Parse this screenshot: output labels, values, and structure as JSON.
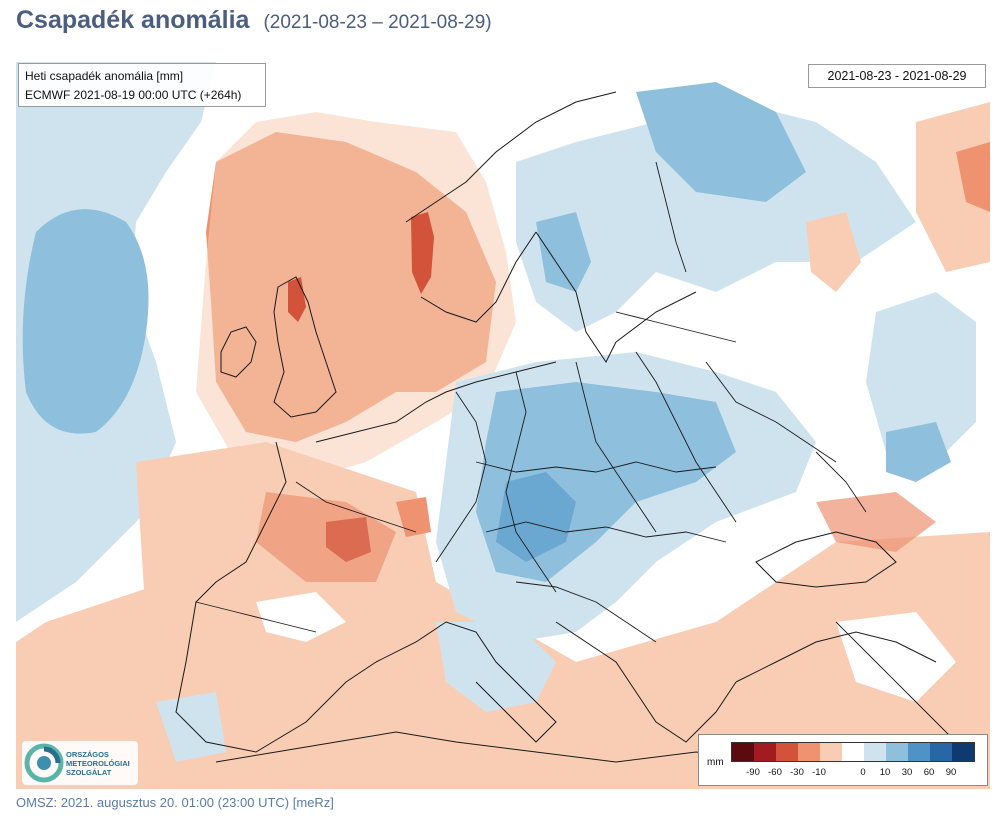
{
  "header": {
    "title": "Csapadék anomália",
    "period": "(2021-08-23 – 2021-08-29)"
  },
  "map": {
    "info_line1": "Heti csapadék anomália [mm]",
    "info_line2": "ECMWF 2021-08-19 00:00 UTC (+264h)",
    "date_range": "2021-08-23 - 2021-08-29"
  },
  "logo": {
    "line1": "ORSZÁGOS",
    "line2": "METEOROLÓGIAI",
    "line3": "SZOLGÁLAT"
  },
  "legend": {
    "unit": "mm",
    "colors": [
      "#5c0a0e",
      "#a31b20",
      "#d2533a",
      "#ee9270",
      "#f8cdb4",
      "#ffffff",
      "#cfe3ef",
      "#8ec0de",
      "#4f93c6",
      "#2867a6",
      "#0e3a70"
    ],
    "ticks": [
      "-90",
      "-60",
      "-30",
      "-10",
      "0",
      "10",
      "30",
      "60",
      "90"
    ]
  },
  "footer": {
    "text": "OMSZ: 2021. augusztus 20. 01:00 (23:00  UTC)  [meRz]"
  }
}
